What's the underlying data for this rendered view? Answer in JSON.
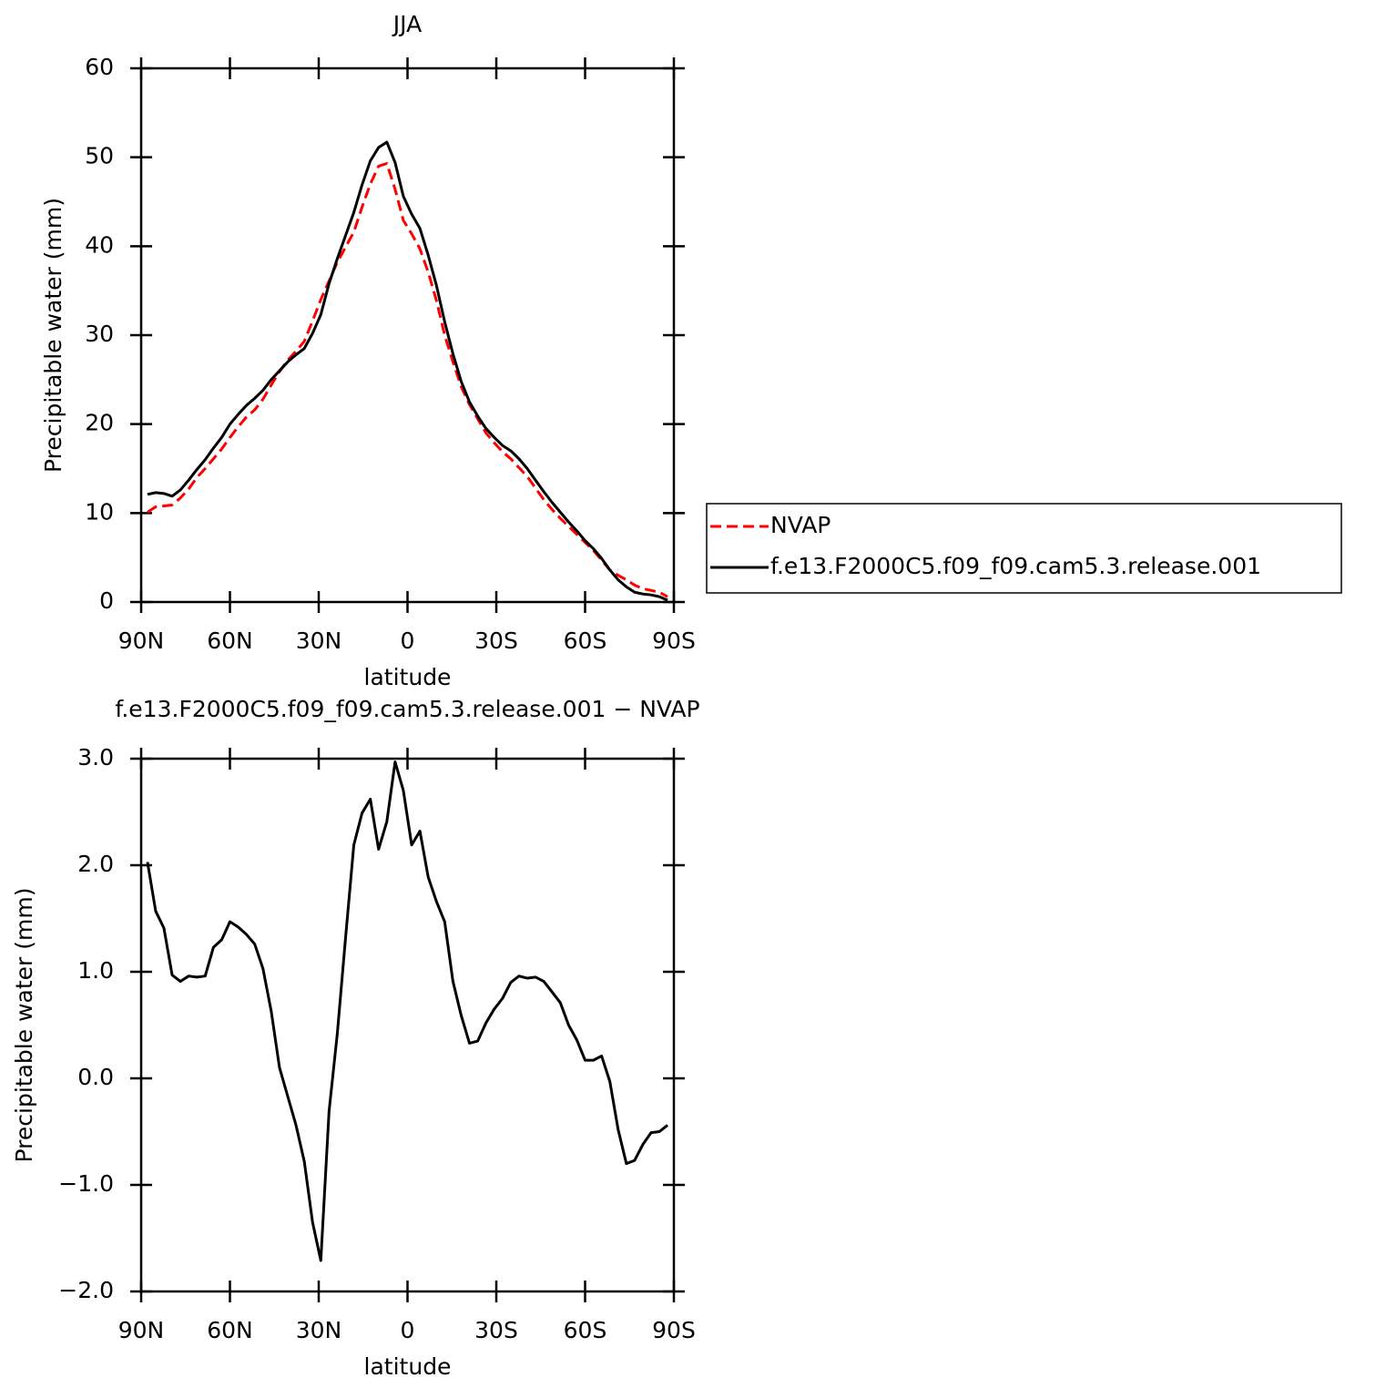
{
  "chart_data": [
    {
      "type": "line",
      "title": "JJA",
      "xlabel": "latitude",
      "ylabel": "Precipitable water (mm)",
      "x": [
        87.86,
        85.1,
        82.31,
        79.53,
        76.74,
        73.95,
        71.16,
        68.37,
        65.58,
        62.79,
        60.0,
        57.21,
        54.42,
        51.63,
        48.84,
        46.05,
        43.25,
        40.46,
        37.67,
        34.88,
        32.09,
        29.3,
        26.51,
        23.72,
        20.93,
        18.14,
        15.35,
        12.56,
        9.77,
        6.98,
        4.19,
        1.4,
        -1.4,
        -4.19,
        -6.98,
        -9.77,
        -12.56,
        -15.35,
        -18.14,
        -20.93,
        -23.72,
        -26.51,
        -29.3,
        -32.09,
        -34.88,
        -37.67,
        -40.46,
        -43.25,
        -46.05,
        -48.84,
        -51.63,
        -54.42,
        -57.21,
        -60.0,
        -62.79,
        -65.58,
        -68.37,
        -71.16,
        -73.95,
        -76.74,
        -79.53,
        -82.31,
        -85.1,
        -87.86
      ],
      "xlim": [
        90,
        -90
      ],
      "xticks": [
        {
          "value": 90,
          "label": "90N"
        },
        {
          "value": 60,
          "label": "60N"
        },
        {
          "value": 30,
          "label": "30N"
        },
        0,
        {
          "value": -30,
          "label": "30S"
        },
        {
          "value": -60,
          "label": "60S"
        },
        {
          "value": -90,
          "label": "90S"
        }
      ],
      "ylim": [
        0,
        60
      ],
      "yticks": [
        0,
        10,
        20,
        30,
        40,
        50,
        60
      ],
      "legend": "right",
      "series": [
        {
          "name": "NVAP",
          "color": "#ff0000",
          "dash": "dashed",
          "values": [
            10.1,
            10.7,
            10.8,
            10.9,
            11.7,
            12.7,
            14.0,
            15.0,
            16.1,
            17.2,
            18.5,
            19.7,
            20.8,
            21.6,
            22.8,
            24.4,
            25.9,
            27.2,
            28.2,
            29.3,
            31.6,
            34.0,
            36.1,
            38.2,
            39.9,
            41.6,
            44.4,
            47.0,
            49.0,
            49.3,
            46.4,
            42.9,
            41.4,
            39.7,
            37.1,
            33.9,
            30.0,
            27.0,
            24.2,
            22.2,
            20.6,
            19.0,
            17.9,
            16.9,
            16.1,
            15.1,
            14.1,
            12.8,
            11.5,
            10.4,
            9.4,
            8.5,
            7.6,
            6.7,
            5.8,
            4.7,
            3.6,
            3.0,
            2.5,
            1.9,
            1.5,
            1.3,
            1.1,
            0.6
          ]
        },
        {
          "name": "f.e13.F2000C5.f09_f09.cam5.3.release.001",
          "color": "#000000",
          "dash": "solid",
          "values": [
            12.1,
            12.3,
            12.2,
            11.9,
            12.6,
            13.7,
            14.9,
            16.0,
            17.3,
            18.5,
            20.0,
            21.1,
            22.1,
            22.9,
            23.8,
            25.0,
            26.0,
            27.0,
            27.8,
            28.5,
            30.2,
            32.3,
            35.8,
            38.6,
            41.2,
            43.8,
            46.9,
            49.6,
            51.1,
            51.7,
            49.4,
            45.6,
            43.6,
            42.0,
            39.0,
            35.6,
            31.5,
            27.9,
            24.8,
            22.5,
            20.9,
            19.5,
            18.5,
            17.6,
            17.0,
            16.1,
            15.0,
            13.7,
            12.4,
            11.2,
            10.1,
            9.0,
            8.0,
            6.9,
            6.0,
            4.9,
            3.6,
            2.5,
            1.7,
            1.1,
            0.9,
            0.8,
            0.6,
            0.2
          ]
        }
      ]
    },
    {
      "type": "line",
      "title": "f.e13.F2000C5.f09_f09.cam5.3.release.001 − NVAP",
      "xlabel": "latitude",
      "ylabel": "Precipitable water (mm)",
      "x": [
        87.86,
        85.1,
        82.31,
        79.53,
        76.74,
        73.95,
        71.16,
        68.37,
        65.58,
        62.79,
        60.0,
        57.21,
        54.42,
        51.63,
        48.84,
        46.05,
        43.25,
        40.46,
        37.67,
        34.88,
        32.09,
        29.3,
        26.51,
        23.72,
        20.93,
        18.14,
        15.35,
        12.56,
        9.77,
        6.98,
        4.19,
        1.4,
        -1.4,
        -4.19,
        -6.98,
        -9.77,
        -12.56,
        -15.35,
        -18.14,
        -20.93,
        -23.72,
        -26.51,
        -29.3,
        -32.09,
        -34.88,
        -37.67,
        -40.46,
        -43.25,
        -46.05,
        -48.84,
        -51.63,
        -54.42,
        -57.21,
        -60.0,
        -62.79,
        -65.58,
        -68.37,
        -71.16,
        -73.95,
        -76.74,
        -79.53,
        -82.31,
        -85.1,
        -87.86
      ],
      "xlim": [
        90,
        -90
      ],
      "xticks": [
        {
          "value": 90,
          "label": "90N"
        },
        {
          "value": 60,
          "label": "60N"
        },
        {
          "value": 30,
          "label": "30N"
        },
        0,
        {
          "value": -30,
          "label": "30S"
        },
        {
          "value": -60,
          "label": "60S"
        },
        {
          "value": -90,
          "label": "90S"
        }
      ],
      "ylim": [
        -2,
        3
      ],
      "yticks": [
        {
          "value": -2,
          "label": "−2.0"
        },
        {
          "value": -1,
          "label": "−1.0"
        },
        {
          "value": 0,
          "label": "0.0"
        },
        {
          "value": 1,
          "label": "1.0"
        },
        {
          "value": 2,
          "label": "2.0"
        },
        {
          "value": 3,
          "label": "3.0"
        }
      ],
      "series": [
        {
          "color": "#000000",
          "dash": "solid",
          "values": [
            2.03,
            1.57,
            1.41,
            0.97,
            0.91,
            0.96,
            0.95,
            0.96,
            1.23,
            1.3,
            1.47,
            1.42,
            1.35,
            1.26,
            1.03,
            0.63,
            0.1,
            -0.17,
            -0.44,
            -0.78,
            -1.35,
            -1.71,
            -0.31,
            0.42,
            1.32,
            2.19,
            2.49,
            2.62,
            2.15,
            2.41,
            2.97,
            2.7,
            2.19,
            2.32,
            1.89,
            1.66,
            1.47,
            0.91,
            0.59,
            0.33,
            0.35,
            0.52,
            0.65,
            0.75,
            0.9,
            0.96,
            0.94,
            0.95,
            0.91,
            0.81,
            0.71,
            0.5,
            0.36,
            0.17,
            0.17,
            0.21,
            -0.03,
            -0.48,
            -0.8,
            -0.77,
            -0.62,
            -0.51,
            -0.5,
            -0.44
          ]
        }
      ]
    }
  ]
}
